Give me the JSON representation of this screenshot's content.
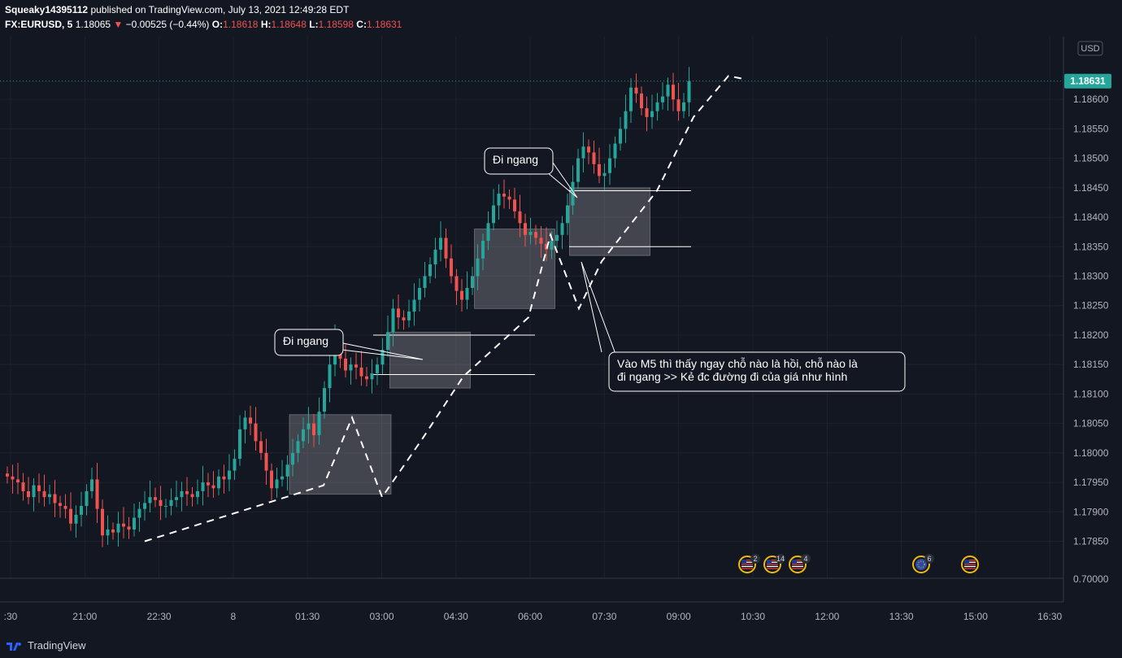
{
  "header": {
    "author": "Squeaky14395112",
    "published_text": "published on TradingView.com, July 13, 2021 12:49:28 EDT",
    "symbol": "FX:EURUSD, 5",
    "last": "1.18065",
    "change_arrow": "▼",
    "change": "−0.00525 (−0.44%)",
    "o_label": "O:",
    "o": "1.18618",
    "h_label": "H:",
    "h": "1.18648",
    "l_label": "L:",
    "l": "1.18598",
    "c_label": "C:",
    "c": "1.18631"
  },
  "brand": "TradingView",
  "colors": {
    "background": "#131722",
    "up": "#26a69a",
    "down": "#ef5350",
    "grid": "#1e222d",
    "axis_text": "#b2b5be",
    "price_tag": "#26a69a"
  },
  "price_scale": {
    "currency": "USD",
    "current_price": "1.18631",
    "extra_tick": "0.70000"
  },
  "annotations": [
    {
      "text": "Đi ngang"
    },
    {
      "text": "Đi ngang"
    },
    {
      "text": "Vào M5 thì thấy ngay chỗ nào là hồi, chỗ nào là đi ngang >> Kẻ đc đường đi của giá như hình"
    }
  ],
  "events": [
    {
      "icon": "us-flag-icon",
      "count": "2"
    },
    {
      "icon": "us-flag-icon",
      "count": "14"
    },
    {
      "icon": "us-flag-icon",
      "count": "4"
    },
    {
      "icon": "eu-flag-icon",
      "count": "6"
    },
    {
      "icon": "us-flag-icon",
      "count": ""
    }
  ],
  "chart_data": {
    "type": "candlestick",
    "timeframe": "5",
    "x_ticks": [
      ":30",
      "21:00",
      "22:30",
      "8",
      "01:30",
      "03:00",
      "04:30",
      "06:00",
      "07:30",
      "09:00",
      "10:30",
      "12:00",
      "13:30",
      "15:00",
      "16:30"
    ],
    "y_ticks": [
      "1.17850",
      "1.17900",
      "1.17950",
      "1.18000",
      "1.18050",
      "1.18100",
      "1.18150",
      "1.18200",
      "1.18250",
      "1.18300",
      "1.18350",
      "1.18400",
      "1.18450",
      "1.18500",
      "1.18550",
      "1.18600"
    ],
    "ylim": [
      1.1783,
      1.1869
    ],
    "current_price": 1.18631,
    "closes": [
      1.1796,
      1.17955,
      1.1795,
      1.17935,
      1.17925,
      1.17945,
      1.17935,
      1.17925,
      1.1793,
      1.17915,
      1.1791,
      1.17905,
      1.1788,
      1.17895,
      1.1791,
      1.17935,
      1.17955,
      1.17905,
      1.1786,
      1.1787,
      1.17865,
      1.1788,
      1.17875,
      1.1787,
      1.1789,
      1.17905,
      1.17915,
      1.17925,
      1.1792,
      1.1791,
      1.1791,
      1.1792,
      1.17925,
      1.17935,
      1.1793,
      1.17925,
      1.17935,
      1.1795,
      1.17945,
      1.1794,
      1.1796,
      1.17955,
      1.1797,
      1.1799,
      1.1804,
      1.1806,
      1.1805,
      1.1802,
      1.18,
      1.1797,
      1.1794,
      1.17955,
      1.1796,
      1.1798,
      1.18,
      1.1802,
      1.1804,
      1.1805,
      1.1803,
      1.1807,
      1.1811,
      1.1815,
      1.1819,
      1.1816,
      1.1814,
      1.1815,
      1.18145,
      1.1813,
      1.18125,
      1.18135,
      1.1815,
      1.18175,
      1.18205,
      1.18245,
      1.1823,
      1.18225,
      1.1824,
      1.1826,
      1.1828,
      1.183,
      1.1832,
      1.18345,
      1.18365,
      1.1833,
      1.183,
      1.18275,
      1.1826,
      1.1828,
      1.183,
      1.1833,
      1.1836,
      1.1839,
      1.1842,
      1.1844,
      1.18435,
      1.1843,
      1.1841,
      1.1839,
      1.1837,
      1.18375,
      1.18365,
      1.18355,
      1.18345,
      1.1836,
      1.1837,
      1.1839,
      1.1842,
      1.1846,
      1.185,
      1.1852,
      1.1851,
      1.1849,
      1.1847,
      1.18475,
      1.185,
      1.18525,
      1.1855,
      1.1858,
      1.1862,
      1.1861,
      1.18585,
      1.1857,
      1.1858,
      1.18595,
      1.18605,
      1.18625,
      1.186,
      1.1858,
      1.18595,
      1.18631
    ],
    "zones": [
      {
        "from": 1.1793,
        "to": 1.18065
      },
      {
        "from": 1.1811,
        "to": 1.18205
      },
      {
        "from": 1.18245,
        "to": 1.1838
      },
      {
        "from": 1.18335,
        "to": 1.1845
      }
    ],
    "levels": [
      1.182,
      1.18133,
      1.18445,
      1.1835
    ],
    "path": [
      1.1785,
      1.17945,
      1.1806,
      1.17925,
      1.18025,
      1.1813,
      1.1823,
      1.1837,
      1.18245,
      1.18325,
      1.18445,
      1.1857,
      1.1864,
      1.18635
    ]
  }
}
